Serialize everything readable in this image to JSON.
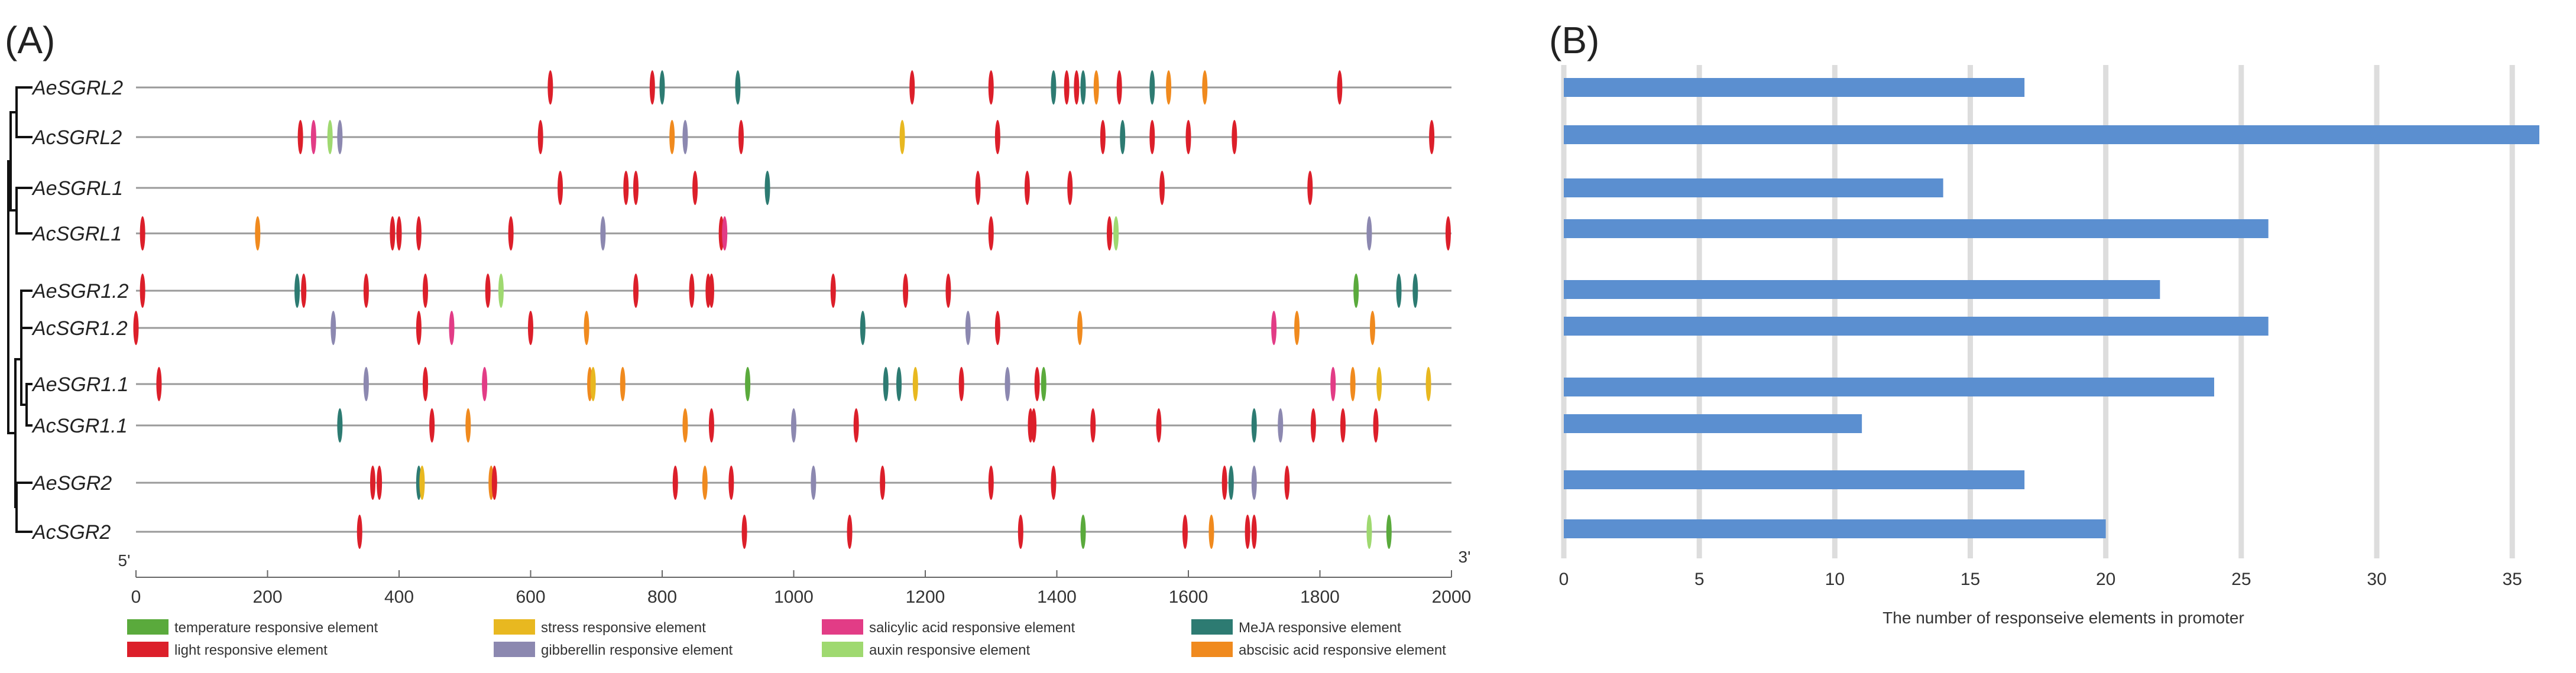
{
  "panels": {
    "a_label": "(A)",
    "b_label": "(B)"
  },
  "colors": {
    "temperature": "#5aaa3c",
    "stress": "#e8b820",
    "salicylic": "#e23c86",
    "meja": "#2d7b72",
    "light": "#dc1f2a",
    "gibberellin": "#8c88b0",
    "auxin": "#9fd970",
    "abscisic": "#f08a1e",
    "bar": "#5b8fd0",
    "grid": "#dddddd",
    "line": "#9a9a9a"
  },
  "legend": [
    {
      "key": "temperature",
      "label": "temperature responsive element"
    },
    {
      "key": "stress",
      "label": "stress responsive element"
    },
    {
      "key": "salicylic",
      "label": "salicylic acid responsive element"
    },
    {
      "key": "meja",
      "label": "MeJA responsive element"
    },
    {
      "key": "light",
      "label": "light responsive element"
    },
    {
      "key": "gibberellin",
      "label": "gibberellin responsive element"
    },
    {
      "key": "auxin",
      "label": "auxin responsive element"
    },
    {
      "key": "abscisic",
      "label": "abscisic acid responsive element"
    }
  ],
  "chart_data": [
    {
      "type": "promoter-map",
      "panel": "(A)",
      "start_label": "5'",
      "end_label": "3'",
      "xlim": [
        0,
        2000
      ],
      "xticks": [
        0,
        200,
        400,
        600,
        800,
        1000,
        1200,
        1400,
        1600,
        1800,
        2000
      ],
      "genes": [
        {
          "name": "AeSGRL2",
          "elements": [
            [
              630,
              "light"
            ],
            [
              785,
              "light"
            ],
            [
              800,
              "meja"
            ],
            [
              915,
              "meja"
            ],
            [
              1180,
              "light"
            ],
            [
              1300,
              "light"
            ],
            [
              1395,
              "meja"
            ],
            [
              1415,
              "light"
            ],
            [
              1430,
              "light"
            ],
            [
              1440,
              "meja"
            ],
            [
              1460,
              "abscisic"
            ],
            [
              1495,
              "light"
            ],
            [
              1545,
              "meja"
            ],
            [
              1570,
              "abscisic"
            ],
            [
              1625,
              "abscisic"
            ],
            [
              1830,
              "light"
            ]
          ]
        },
        {
          "name": "AcSGRL2",
          "elements": [
            [
              250,
              "light"
            ],
            [
              270,
              "salicylic"
            ],
            [
              295,
              "auxin"
            ],
            [
              310,
              "gibberellin"
            ],
            [
              615,
              "light"
            ],
            [
              815,
              "abscisic"
            ],
            [
              835,
              "gibberellin"
            ],
            [
              920,
              "light"
            ],
            [
              1165,
              "stress"
            ],
            [
              1310,
              "light"
            ],
            [
              1470,
              "light"
            ],
            [
              1500,
              "meja"
            ],
            [
              1545,
              "light"
            ],
            [
              1600,
              "light"
            ],
            [
              1670,
              "light"
            ],
            [
              1970,
              "light"
            ]
          ]
        },
        {
          "name": "AeSGRL1",
          "elements": [
            [
              645,
              "light"
            ],
            [
              745,
              "light"
            ],
            [
              760,
              "light"
            ],
            [
              850,
              "light"
            ],
            [
              960,
              "meja"
            ],
            [
              1280,
              "light"
            ],
            [
              1355,
              "light"
            ],
            [
              1420,
              "light"
            ],
            [
              1560,
              "light"
            ],
            [
              1785,
              "light"
            ]
          ]
        },
        {
          "name": "AcSGRL1",
          "elements": [
            [
              10,
              "light"
            ],
            [
              185,
              "abscisic"
            ],
            [
              390,
              "light"
            ],
            [
              400,
              "light"
            ],
            [
              430,
              "light"
            ],
            [
              570,
              "light"
            ],
            [
              710,
              "gibberellin"
            ],
            [
              890,
              "light"
            ],
            [
              895,
              "salicylic"
            ],
            [
              1300,
              "light"
            ],
            [
              1480,
              "light"
            ],
            [
              1490,
              "auxin"
            ],
            [
              1875,
              "gibberellin"
            ],
            [
              1995,
              "light"
            ]
          ]
        },
        {
          "name": "AeSGR1.2",
          "elements": [
            [
              10,
              "light"
            ],
            [
              245,
              "meja"
            ],
            [
              255,
              "light"
            ],
            [
              350,
              "light"
            ],
            [
              440,
              "light"
            ],
            [
              535,
              "light"
            ],
            [
              555,
              "auxin"
            ],
            [
              760,
              "light"
            ],
            [
              845,
              "light"
            ],
            [
              870,
              "light"
            ],
            [
              875,
              "light"
            ],
            [
              1060,
              "light"
            ],
            [
              1170,
              "light"
            ],
            [
              1235,
              "light"
            ],
            [
              1855,
              "temperature"
            ],
            [
              1920,
              "meja"
            ],
            [
              1945,
              "meja"
            ]
          ]
        },
        {
          "name": "AcSGR1.2",
          "elements": [
            [
              0,
              "light"
            ],
            [
              300,
              "gibberellin"
            ],
            [
              430,
              "light"
            ],
            [
              480,
              "salicylic"
            ],
            [
              600,
              "light"
            ],
            [
              685,
              "abscisic"
            ],
            [
              1105,
              "meja"
            ],
            [
              1265,
              "gibberellin"
            ],
            [
              1310,
              "light"
            ],
            [
              1435,
              "abscisic"
            ],
            [
              1730,
              "salicylic"
            ],
            [
              1765,
              "abscisic"
            ],
            [
              1880,
              "abscisic"
            ]
          ]
        },
        {
          "name": "AeSGR1.1",
          "elements": [
            [
              35,
              "light"
            ],
            [
              350,
              "gibberellin"
            ],
            [
              440,
              "light"
            ],
            [
              530,
              "salicylic"
            ],
            [
              690,
              "abscisic"
            ],
            [
              695,
              "stress"
            ],
            [
              740,
              "abscisic"
            ],
            [
              930,
              "temperature"
            ],
            [
              1140,
              "meja"
            ],
            [
              1160,
              "meja"
            ],
            [
              1185,
              "stress"
            ],
            [
              1255,
              "light"
            ],
            [
              1325,
              "gibberellin"
            ],
            [
              1370,
              "light"
            ],
            [
              1380,
              "temperature"
            ],
            [
              1820,
              "salicylic"
            ],
            [
              1850,
              "abscisic"
            ],
            [
              1890,
              "stress"
            ],
            [
              1965,
              "stress"
            ]
          ]
        },
        {
          "name": "AcSGR1.1",
          "elements": [
            [
              310,
              "meja"
            ],
            [
              450,
              "light"
            ],
            [
              505,
              "abscisic"
            ],
            [
              835,
              "abscisic"
            ],
            [
              875,
              "light"
            ],
            [
              1000,
              "gibberellin"
            ],
            [
              1095,
              "light"
            ],
            [
              1360,
              "light"
            ],
            [
              1365,
              "light"
            ],
            [
              1455,
              "light"
            ],
            [
              1555,
              "light"
            ],
            [
              1700,
              "meja"
            ],
            [
              1740,
              "gibberellin"
            ],
            [
              1790,
              "light"
            ],
            [
              1835,
              "light"
            ],
            [
              1885,
              "light"
            ]
          ]
        },
        {
          "name": "AeSGR2",
          "elements": [
            [
              360,
              "light"
            ],
            [
              370,
              "light"
            ],
            [
              430,
              "meja"
            ],
            [
              435,
              "stress"
            ],
            [
              540,
              "abscisic"
            ],
            [
              545,
              "light"
            ],
            [
              820,
              "light"
            ],
            [
              865,
              "abscisic"
            ],
            [
              905,
              "light"
            ],
            [
              1030,
              "gibberellin"
            ],
            [
              1135,
              "light"
            ],
            [
              1300,
              "light"
            ],
            [
              1395,
              "light"
            ],
            [
              1655,
              "light"
            ],
            [
              1665,
              "meja"
            ],
            [
              1700,
              "gibberellin"
            ],
            [
              1750,
              "light"
            ]
          ]
        },
        {
          "name": "AcSGR2",
          "elements": [
            [
              340,
              "light"
            ],
            [
              925,
              "light"
            ],
            [
              1085,
              "light"
            ],
            [
              1345,
              "light"
            ],
            [
              1440,
              "temperature"
            ],
            [
              1595,
              "light"
            ],
            [
              1635,
              "abscisic"
            ],
            [
              1690,
              "light"
            ],
            [
              1700,
              "light"
            ],
            [
              1875,
              "auxin"
            ],
            [
              1905,
              "temperature"
            ]
          ]
        }
      ]
    },
    {
      "type": "bar",
      "orientation": "horizontal",
      "panel": "(B)",
      "xlabel": "The number of responseive elements in promoter",
      "xlim": [
        0,
        36
      ],
      "xticks": [
        0,
        5,
        10,
        15,
        20,
        25,
        30,
        35
      ],
      "grid": true,
      "values": [
        17,
        36,
        14,
        26,
        22,
        26,
        24,
        11,
        17,
        20
      ]
    }
  ]
}
